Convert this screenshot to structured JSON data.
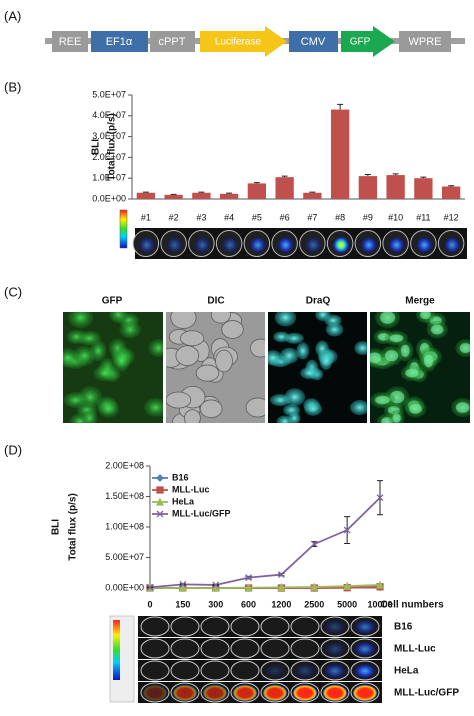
{
  "panels": [
    "(A)",
    "(B)",
    "(C)",
    "(D)"
  ],
  "construct": [
    "REE",
    "EF1α",
    "cPPT",
    "Luciferase",
    "CMV",
    "GFP",
    "WPRE"
  ],
  "microscopy": [
    "GFP",
    "DIC",
    "DraQ",
    "Merge"
  ],
  "chart_data": [
    {
      "type": "bar",
      "ylabel_group": "BLI",
      "ylabel": "Total flux (p/s)",
      "categories": [
        "#1",
        "#2",
        "#3",
        "#4",
        "#5",
        "#6",
        "#7",
        "#8",
        "#9",
        "#10",
        "#11",
        "#12"
      ],
      "values": [
        3000000,
        2000000,
        3000000,
        2500000,
        7500000,
        10500000,
        3000000,
        43000000,
        11000000,
        11500000,
        10000000,
        6000000
      ],
      "errors": [
        300000,
        200000,
        300000,
        300000,
        400000,
        500000,
        300000,
        2500000,
        800000,
        600000,
        500000,
        400000
      ],
      "color": "#c0504d",
      "ylim": [
        0,
        50000000
      ],
      "yticks": [
        {
          "value": 0,
          "label": "0.0E+00"
        },
        {
          "value": 10000000,
          "label": "1.0E+07"
        },
        {
          "value": 20000000,
          "label": "2.0E+07"
        },
        {
          "value": 30000000,
          "label": "3.0E+07"
        },
        {
          "value": 40000000,
          "label": "4.0E+07"
        },
        {
          "value": 50000000,
          "label": "5.0E+07"
        }
      ]
    },
    {
      "type": "line",
      "ylabel_group": "BLI",
      "ylabel": "Total flux (p/s)",
      "xlabel": "Cell numbers",
      "categories": [
        "0",
        "150",
        "300",
        "600",
        "1200",
        "2500",
        "5000",
        "10000"
      ],
      "series": [
        {
          "name": "B16",
          "color": "#4f81bd",
          "values": [
            0,
            0,
            0,
            0,
            0,
            0,
            500000,
            1500000
          ]
        },
        {
          "name": "MLL-Luc",
          "color": "#c0504d",
          "values": [
            0,
            0,
            0,
            0,
            0,
            0,
            500000,
            2000000
          ]
        },
        {
          "name": "HeLa",
          "color": "#9bbb59",
          "values": [
            0,
            0,
            0,
            500000,
            1000000,
            1500000,
            3000000,
            5000000
          ]
        },
        {
          "name": "MLL-Luc/GFP",
          "color": "#8064a2",
          "values": [
            1000000,
            6000000,
            5000000,
            17000000,
            22000000,
            72000000,
            95000000,
            148000000
          ],
          "errors": [
            500000,
            1000000,
            1000000,
            2000000,
            2000000,
            4000000,
            22000000,
            28000000
          ]
        }
      ],
      "ylim": [
        0,
        200000000
      ],
      "yticks": [
        {
          "value": 0,
          "label": "0.00E+00"
        },
        {
          "value": 50000000,
          "label": "5.00E+07"
        },
        {
          "value": 100000000,
          "label": "1.00E+08"
        },
        {
          "value": 150000000,
          "label": "1.50E+08"
        },
        {
          "value": 200000000,
          "label": "2.00E+08"
        }
      ]
    }
  ]
}
